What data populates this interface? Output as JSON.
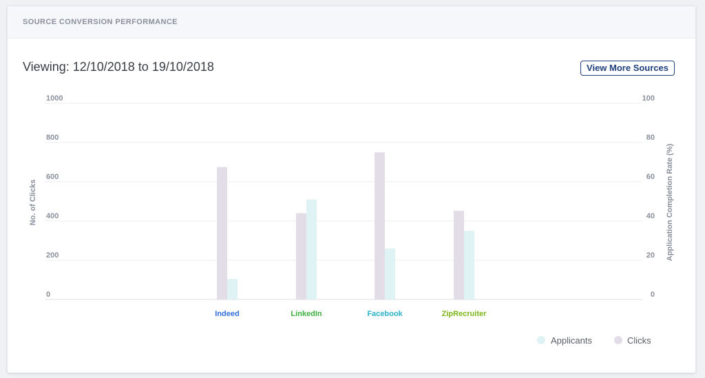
{
  "card": {
    "title": "SOURCE CONVERSION PERFORMANCE",
    "viewing": "Viewing: 12/10/2018 to 19/10/2018",
    "button_label": "View More Sources"
  },
  "chart_data": {
    "type": "bar",
    "categories": [
      "Indeed",
      "LinkedIn",
      "Facebook",
      "ZipRecruiter"
    ],
    "category_colors": [
      "#2f6fdb",
      "#3aae3a",
      "#2ab3c8",
      "#7cb518"
    ],
    "series": [
      {
        "name": "Clicks",
        "axis": "left",
        "color": "#e3dde8",
        "values": [
          675,
          440,
          750,
          452
        ]
      },
      {
        "name": "Applicants",
        "axis": "right",
        "color": "#dff3f5",
        "values": [
          10.5,
          51,
          26,
          35
        ]
      }
    ],
    "ylabel": "No. of Clicks",
    "ylim": [
      0,
      1000
    ],
    "yticks": [
      "0",
      "200",
      "400",
      "600",
      "800",
      "1000"
    ],
    "y2label": "Application Completion Rate (%)",
    "y2lim": [
      0,
      100
    ],
    "y2ticks": [
      "0",
      "20",
      "40",
      "60",
      "80",
      "100"
    ],
    "grid": true,
    "legend_position": "bottom-right",
    "legend": [
      "Applicants",
      "Clicks"
    ]
  }
}
